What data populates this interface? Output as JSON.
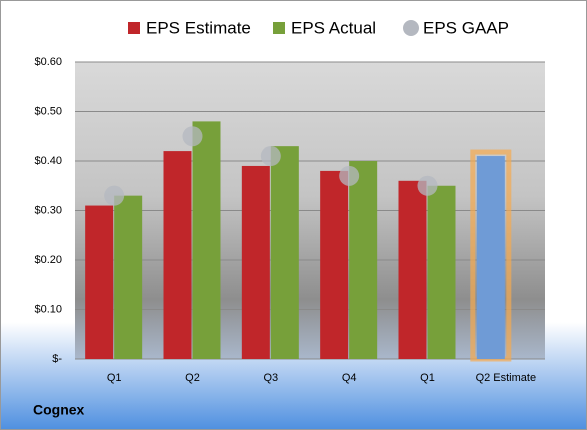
{
  "chart_data": {
    "type": "bar",
    "title": "Cognex",
    "categories": [
      "Q1",
      "Q2",
      "Q3",
      "Q4",
      "Q1",
      "Q2 Estimate"
    ],
    "series": [
      {
        "name": "EPS Estimate",
        "color": "#c0262a",
        "values": [
          0.31,
          0.42,
          0.39,
          0.38,
          0.36,
          0.41
        ],
        "colors": [
          "#c0262a",
          "#c0262a",
          "#c0262a",
          "#c0262a",
          "#c0262a",
          "#6f9bd6"
        ]
      },
      {
        "name": "EPS Actual",
        "color": "#77a03a",
        "values": [
          0.33,
          0.48,
          0.43,
          0.4,
          0.35,
          null
        ]
      },
      {
        "name": "EPS GAAP",
        "color": "#b4b8c0",
        "mark": "dot",
        "values": [
          0.33,
          0.45,
          0.41,
          0.37,
          0.35,
          null
        ]
      }
    ],
    "ylim": [
      0,
      0.6
    ],
    "yticks": [
      {
        "value": 0,
        "label": "$-"
      },
      {
        "value": 0.1,
        "label": "$0.10"
      },
      {
        "value": 0.2,
        "label": "$0.20"
      },
      {
        "value": 0.3,
        "label": "$0.30"
      },
      {
        "value": 0.4,
        "label": "$0.40"
      },
      {
        "value": 0.5,
        "label": "$0.50"
      },
      {
        "value": 0.6,
        "label": "$0.60"
      }
    ],
    "grid": true
  }
}
